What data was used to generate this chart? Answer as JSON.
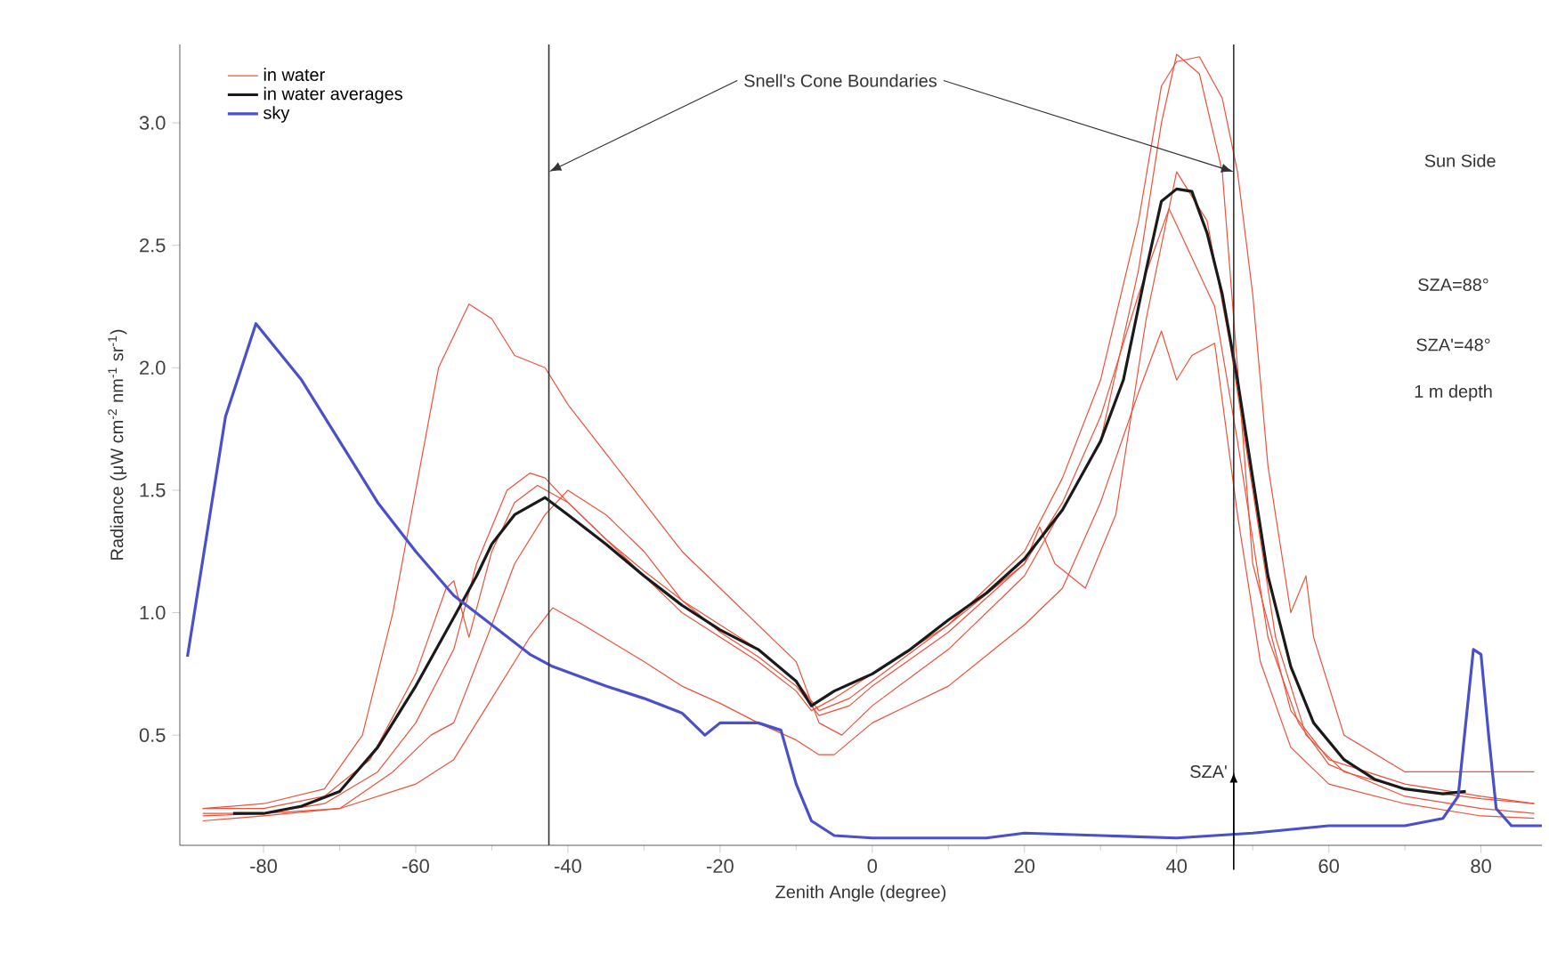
{
  "chart_data": {
    "type": "line",
    "xlabel": "Zenith Angle (degree)",
    "ylabel": "Radiance (μW cm$^{-2}$ nm$^{-1}$ sr$^{-1}$)",
    "xlim": [
      -91,
      88
    ],
    "ylim": [
      0.05,
      3.32
    ],
    "xticks": [
      -80,
      -60,
      -40,
      -20,
      0,
      20,
      40,
      60,
      80
    ],
    "yticks": [
      0.5,
      {
        "value": 1,
        "label": "1.0"
      },
      1.5,
      {
        "value": 2,
        "label": "2.0"
      },
      2.5,
      {
        "value": 3,
        "label": "3.0"
      }
    ],
    "legend": "top left",
    "grid": false,
    "marker": "none",
    "line_style": "solid",
    "ref_lines": [
      {
        "axis": "x",
        "value": -42.5,
        "color": "#333333"
      },
      {
        "axis": "x",
        "value": 47.5,
        "color": "#333333"
      }
    ],
    "annotations": [
      {
        "text": "Snell's Cone Boundaries",
        "x": -42.5,
        "y": 2.8
      },
      "Sun Side",
      "SZA=88°",
      "SZA'=48°",
      "1 m depth",
      {
        "text": "SZA'",
        "x": 47.5,
        "y": 0.3
      }
    ],
    "series": [
      {
        "name": "in water",
        "color": "#f0503a",
        "x": [
          -88,
          -80,
          -72,
          -67,
          -63,
          -60,
          -57,
          -53,
          -50,
          -47,
          -43,
          -40,
          -35,
          -30,
          -25,
          -20,
          -15,
          -10,
          -7,
          -4,
          0,
          10,
          20,
          30,
          35,
          38,
          40,
          43,
          46,
          48,
          50,
          55,
          60,
          70,
          80,
          87
        ],
        "values": [
          0.2,
          0.22,
          0.28,
          0.5,
          1.0,
          1.5,
          2.0,
          2.26,
          2.2,
          2.05,
          2.0,
          1.85,
          1.65,
          1.45,
          1.25,
          1.1,
          0.95,
          0.8,
          0.55,
          0.5,
          0.62,
          0.85,
          1.15,
          1.7,
          2.4,
          3.0,
          3.28,
          3.2,
          2.8,
          2.0,
          1.2,
          0.6,
          0.4,
          0.3,
          0.25,
          0.22
        ]
      },
      {
        "color": "#f0503a",
        "x": [
          -88,
          -80,
          -72,
          -65,
          -60,
          -55,
          -52,
          -48,
          -45,
          -43,
          -40,
          -35,
          -30,
          -25,
          -20,
          -15,
          -10,
          -7,
          -3,
          0,
          10,
          20,
          25,
          30,
          35,
          38,
          40,
          43,
          46,
          48,
          50,
          52,
          55,
          57,
          58,
          62,
          70,
          80,
          87
        ],
        "values": [
          0.17,
          0.18,
          0.22,
          0.35,
          0.55,
          0.85,
          1.2,
          1.5,
          1.57,
          1.55,
          1.45,
          1.3,
          1.17,
          1.05,
          0.95,
          0.85,
          0.72,
          0.6,
          0.65,
          0.72,
          0.95,
          1.25,
          1.55,
          1.95,
          2.6,
          3.15,
          3.25,
          3.27,
          3.1,
          2.8,
          2.3,
          1.6,
          1.0,
          1.15,
          0.9,
          0.5,
          0.35,
          0.35,
          0.35
        ]
      },
      {
        "color": "#f0503a",
        "x": [
          -88,
          -80,
          -70,
          -63,
          -58,
          -55,
          -50,
          -47,
          -43,
          -40,
          -35,
          -30,
          -25,
          -20,
          -15,
          -10,
          -7,
          -3,
          0,
          10,
          20,
          25,
          30,
          35,
          39,
          42,
          45,
          48,
          52,
          56,
          60,
          70,
          80,
          87
        ],
        "values": [
          0.15,
          0.17,
          0.2,
          0.35,
          0.5,
          0.55,
          0.95,
          1.2,
          1.4,
          1.5,
          1.4,
          1.25,
          1.05,
          0.92,
          0.82,
          0.7,
          0.58,
          0.62,
          0.7,
          0.92,
          1.2,
          1.45,
          1.8,
          2.3,
          2.65,
          2.45,
          2.25,
          1.7,
          0.9,
          0.55,
          0.38,
          0.25,
          0.2,
          0.18
        ]
      },
      {
        "color": "#f0503a",
        "x": [
          -88,
          -80,
          -70,
          -60,
          -55,
          -50,
          -45,
          -42,
          -38,
          -30,
          -25,
          -20,
          -15,
          -10,
          -7,
          -5,
          0,
          10,
          20,
          25,
          30,
          35,
          38,
          40,
          42,
          45,
          48,
          51,
          55,
          60,
          70,
          80,
          87
        ],
        "values": [
          0.18,
          0.18,
          0.2,
          0.3,
          0.4,
          0.65,
          0.9,
          1.02,
          0.95,
          0.8,
          0.7,
          0.63,
          0.55,
          0.48,
          0.42,
          0.42,
          0.55,
          0.7,
          0.95,
          1.1,
          1.45,
          1.9,
          2.15,
          1.95,
          2.05,
          2.1,
          1.4,
          0.8,
          0.45,
          0.3,
          0.22,
          0.17,
          0.16
        ]
      },
      {
        "color": "#f0503a",
        "x": [
          -88,
          -80,
          -72,
          -66,
          -60,
          -56,
          -55,
          -53,
          -50,
          -47,
          -44,
          -40,
          -35,
          -30,
          -25,
          -20,
          -15,
          -10,
          -8,
          -5,
          0,
          10,
          20,
          22,
          24,
          28,
          32,
          36,
          40,
          44,
          47,
          50,
          53,
          57,
          62,
          70,
          80,
          87
        ],
        "values": [
          0.2,
          0.2,
          0.25,
          0.4,
          0.75,
          1.1,
          1.13,
          0.9,
          1.25,
          1.45,
          1.52,
          1.45,
          1.3,
          1.15,
          1.0,
          0.9,
          0.8,
          0.68,
          0.6,
          0.65,
          0.75,
          0.95,
          1.2,
          1.35,
          1.2,
          1.1,
          1.4,
          2.2,
          2.8,
          2.6,
          2.1,
          1.5,
          0.9,
          0.5,
          0.35,
          0.28,
          0.24,
          0.22
        ]
      },
      {
        "name": "in water averages",
        "color": "#1a1a1a",
        "x": [
          -84,
          -80,
          -75,
          -70,
          -65,
          -60,
          -55,
          -52,
          -50,
          -47,
          -43,
          -40,
          -35,
          -30,
          -25,
          -20,
          -15,
          -10,
          -8,
          -5,
          0,
          5,
          10,
          15,
          20,
          25,
          30,
          33,
          36,
          38,
          40,
          42,
          44,
          46,
          48,
          50,
          52,
          55,
          58,
          62,
          66,
          70,
          75,
          78
        ],
        "values": [
          0.18,
          0.18,
          0.21,
          0.27,
          0.45,
          0.7,
          0.98,
          1.15,
          1.28,
          1.4,
          1.47,
          1.4,
          1.28,
          1.15,
          1.03,
          0.93,
          0.85,
          0.72,
          0.62,
          0.68,
          0.75,
          0.85,
          0.97,
          1.08,
          1.22,
          1.42,
          1.7,
          1.95,
          2.4,
          2.68,
          2.73,
          2.72,
          2.55,
          2.3,
          1.95,
          1.55,
          1.15,
          0.78,
          0.55,
          0.4,
          0.32,
          0.28,
          0.26,
          0.27
        ]
      },
      {
        "name": "sky",
        "color": "#4a50c8",
        "x": [
          -90,
          -85,
          -81,
          -75,
          -70,
          -65,
          -60,
          -55,
          -50,
          -45,
          -42,
          -35,
          -30,
          -25,
          -22,
          -20,
          -15,
          -12,
          -10,
          -8,
          -5,
          0,
          10,
          15,
          20,
          30,
          40,
          50,
          60,
          70,
          75,
          77,
          78,
          79,
          80,
          81,
          82,
          84,
          88
        ],
        "values": [
          0.82,
          1.8,
          2.18,
          1.95,
          1.7,
          1.45,
          1.25,
          1.07,
          0.95,
          0.83,
          0.78,
          0.7,
          0.65,
          0.59,
          0.5,
          0.55,
          0.55,
          0.52,
          0.3,
          0.15,
          0.09,
          0.08,
          0.08,
          0.08,
          0.1,
          0.09,
          0.08,
          0.1,
          0.13,
          0.13,
          0.16,
          0.25,
          0.55,
          0.85,
          0.83,
          0.5,
          0.2,
          0.13,
          0.13
        ]
      }
    ]
  }
}
